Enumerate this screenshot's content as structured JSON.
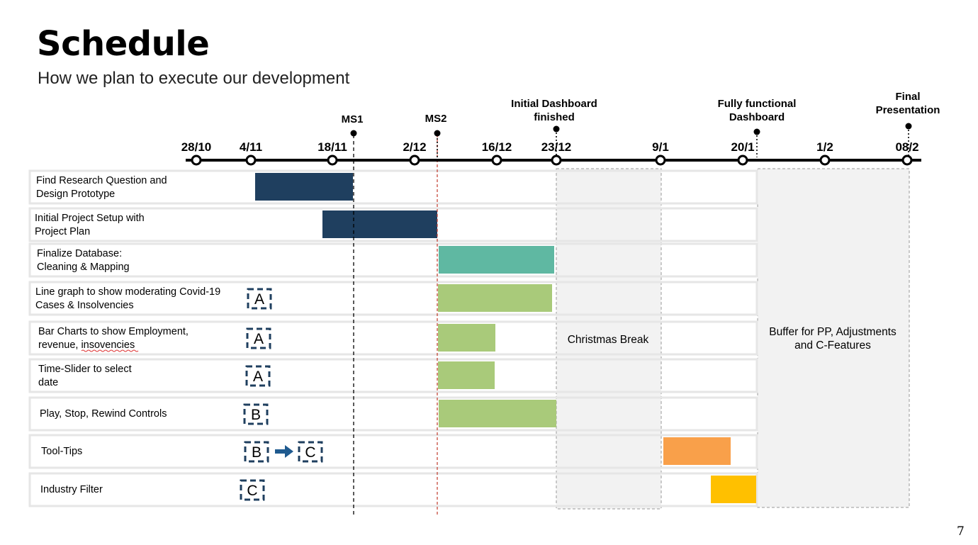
{
  "slide": {
    "title": "Schedule",
    "subtitle": "How we plan to execute our development",
    "page_number": "7"
  },
  "timeline": {
    "dates": [
      "28/10",
      "4/11",
      "18/11",
      "2/12",
      "16/12",
      "23/12",
      "9/1",
      "20/1",
      "1/2",
      "08/2"
    ],
    "milestones": [
      {
        "id": "ms1",
        "lines": [
          "MS1"
        ],
        "at": "MS1"
      },
      {
        "id": "ms2",
        "lines": [
          "MS2"
        ],
        "at": "MS2"
      },
      {
        "id": "initial-dashboard",
        "lines": [
          "Initial Dashboard",
          "finished"
        ],
        "at": "23/12"
      },
      {
        "id": "fully-functional",
        "lines": [
          "Fully functional",
          "Dashboard"
        ],
        "at": "20/1"
      },
      {
        "id": "final-presentation",
        "lines": [
          "Final",
          "Presentation"
        ],
        "at": "08/2"
      }
    ]
  },
  "periods": {
    "christmas": {
      "label": "Christmas Break"
    },
    "buffer": {
      "lines": [
        "Buffer for PP, Adjustments",
        "and C-Features"
      ]
    }
  },
  "colors": {
    "navy": "#1f3f5f",
    "teal": "#5fb8a2",
    "green": "#a9ca7a",
    "orange": "#f9a04a",
    "yellow": "#ffc000",
    "period_fill": "#f2f2f2",
    "row_border": "#e6e6e6",
    "legend_dash": "#1f3f5f",
    "arrow": "#1f5a8f",
    "ms2_line": "#c0392b"
  },
  "tasks": [
    {
      "lines": [
        "Find Research Question and",
        "Design Prototype"
      ],
      "legend": [],
      "bar_color": "navy"
    },
    {
      "lines": [
        "Initial Project Setup with",
        "Project Plan"
      ],
      "legend": [],
      "bar_color": "navy"
    },
    {
      "lines": [
        "Finalize Database:",
        "Cleaning & Mapping"
      ],
      "legend": [],
      "bar_color": "teal"
    },
    {
      "lines": [
        "Line graph to show moderating Covid-19",
        "Cases & Insolvencies"
      ],
      "legend": [
        "A"
      ],
      "bar_color": "green"
    },
    {
      "lines": [
        "Bar Charts to show Employment,",
        "revenue, insovencies"
      ],
      "legend": [
        "A"
      ],
      "bar_color": "green"
    },
    {
      "lines": [
        "Time-Slider to select",
        "date"
      ],
      "legend": [
        "A"
      ],
      "bar_color": "green"
    },
    {
      "lines": [
        "Play, Stop, Rewind Controls"
      ],
      "legend": [
        "B"
      ],
      "bar_color": "green"
    },
    {
      "lines": [
        "Tool-Tips"
      ],
      "legend": [
        "B",
        "C"
      ],
      "bar_color": "orange"
    },
    {
      "lines": [
        "Industry Filter"
      ],
      "legend": [
        "C"
      ],
      "bar_color": "yellow"
    }
  ]
}
